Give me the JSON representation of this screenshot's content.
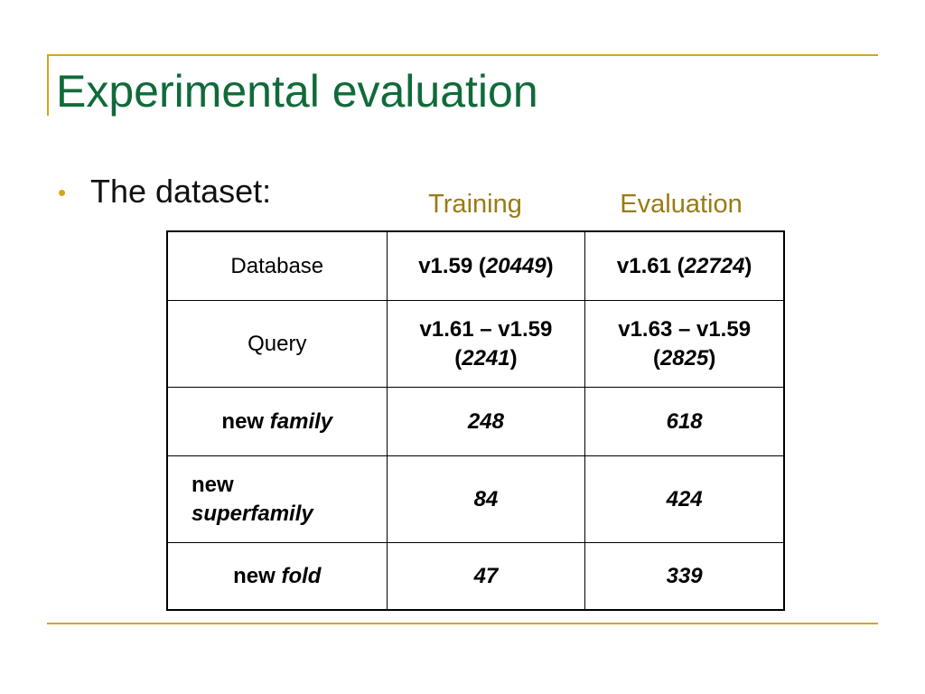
{
  "slide": {
    "title": "Experimental evaluation",
    "bullet_marker": "•",
    "bullet_text": "The dataset:",
    "accent_color": "#d4a520",
    "title_color": "#0f6b39",
    "header_color": "#9a7b12"
  },
  "table": {
    "column_headers": {
      "training": "Training",
      "evaluation": "Evaluation"
    },
    "rows": {
      "database": {
        "label": "Database",
        "training_prefix": "v1.59 (",
        "training_count": "20449",
        "training_suffix": ")",
        "evaluation_prefix": "v1.61 (",
        "evaluation_count": "22724",
        "evaluation_suffix": ")"
      },
      "query": {
        "label": "Query",
        "training_range": "v1.61 – v1.59",
        "training_open": "(",
        "training_count": "2241",
        "training_close": ")",
        "evaluation_range": "v1.63 – v1.59",
        "evaluation_open": "(",
        "evaluation_count": "2825",
        "evaluation_close": ")"
      },
      "new_family": {
        "label_prefix": "new ",
        "label_term": "family",
        "training": "248",
        "evaluation": "618"
      },
      "new_superfamily": {
        "label_prefix": "new",
        "label_term": "superfamily",
        "training": "84",
        "evaluation": "424"
      },
      "new_fold": {
        "label_prefix": "new ",
        "label_term": "fold",
        "training": "47",
        "evaluation": "339"
      }
    }
  }
}
